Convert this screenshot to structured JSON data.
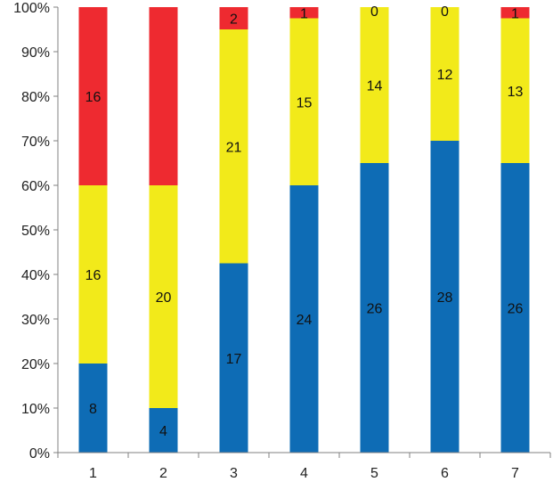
{
  "chart_data": {
    "type": "bar",
    "stacked": "percent",
    "title": "",
    "xlabel": "",
    "ylabel": "",
    "categories": [
      "1",
      "2",
      "3",
      "4",
      "5",
      "6",
      "7"
    ],
    "ylim": [
      0,
      100
    ],
    "yticks": [
      "0%",
      "10%",
      "20%",
      "30%",
      "40%",
      "50%",
      "60%",
      "70%",
      "80%",
      "90%",
      "100%"
    ],
    "grid": false,
    "legend": "none",
    "series": [
      {
        "color": "#0E6CB5",
        "values": [
          8,
          4,
          17,
          24,
          26,
          28,
          26
        ]
      },
      {
        "color": "#F2EA1A",
        "values": [
          16,
          20,
          21,
          15,
          14,
          12,
          13
        ]
      },
      {
        "color": "#EE2A30",
        "values": [
          16,
          16,
          2,
          1,
          0,
          0,
          1
        ]
      }
    ],
    "data_labels": [
      [
        "8",
        "4",
        "17",
        "24",
        "26",
        "28",
        "26"
      ],
      [
        "16",
        "20",
        "21",
        "15",
        "14",
        "12",
        "13"
      ],
      [
        "16",
        "",
        "2",
        "1",
        "0",
        "0",
        "1"
      ]
    ]
  }
}
